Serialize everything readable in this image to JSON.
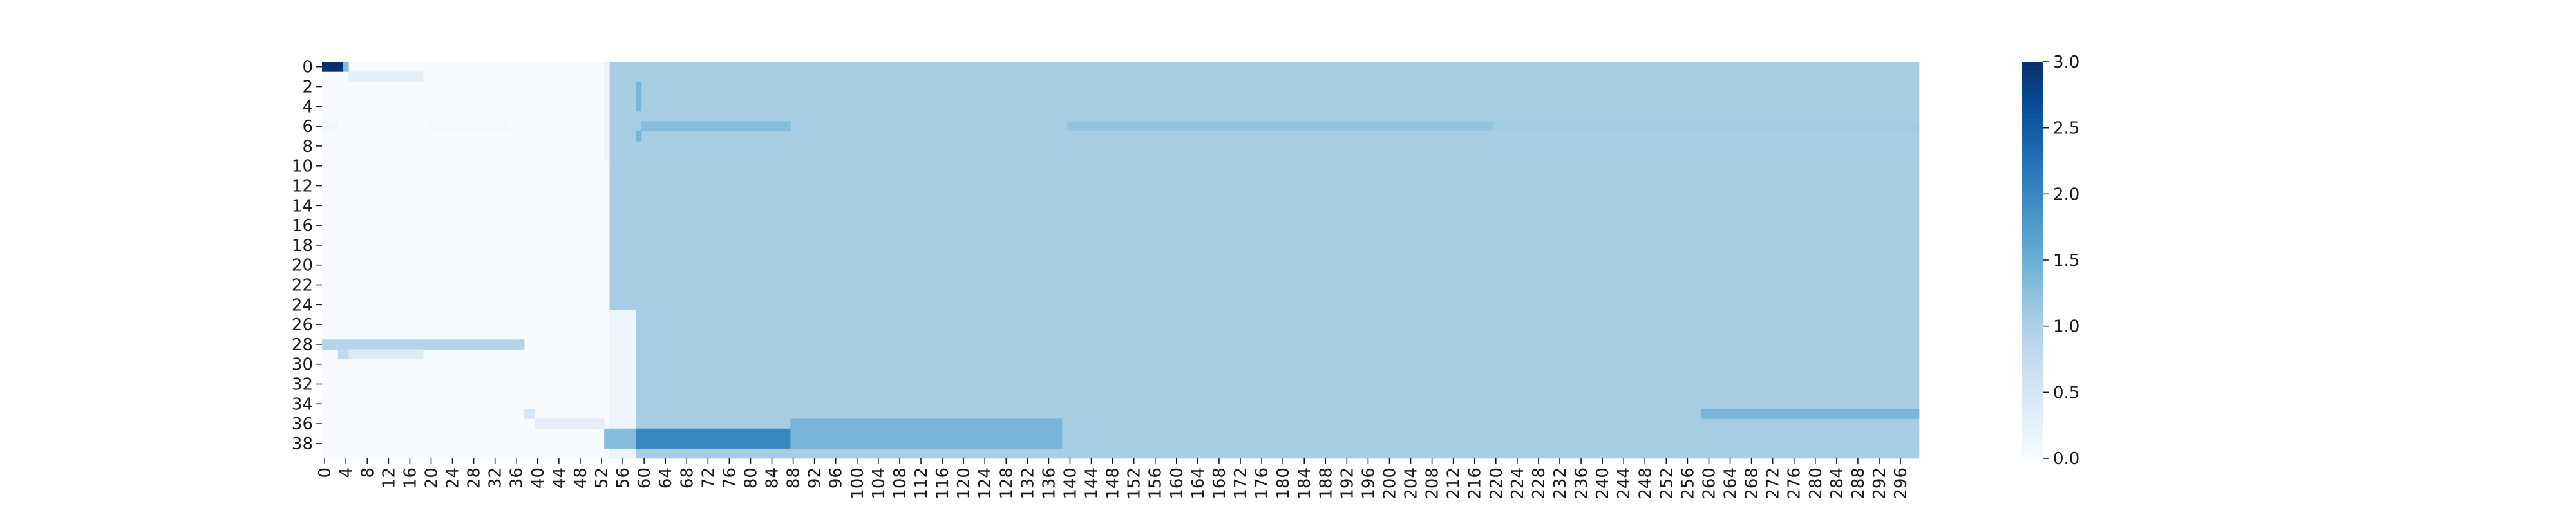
{
  "chart_data": {
    "type": "heatmap",
    "n_cols": 300,
    "n_rows": 40,
    "x_tick_labels": [
      "0",
      "4",
      "8",
      "12",
      "16",
      "20",
      "24",
      "28",
      "32",
      "36",
      "40",
      "44",
      "48",
      "52",
      "56",
      "60",
      "64",
      "68",
      "72",
      "76",
      "80",
      "84",
      "88",
      "92",
      "96",
      "100",
      "104",
      "108",
      "112",
      "116",
      "120",
      "124",
      "128",
      "132",
      "136",
      "140",
      "144",
      "148",
      "152",
      "156",
      "160",
      "164",
      "168",
      "172",
      "176",
      "180",
      "184",
      "188",
      "192",
      "196",
      "200",
      "204",
      "208",
      "212",
      "216",
      "220",
      "224",
      "228",
      "232",
      "236",
      "240",
      "244",
      "248",
      "252",
      "256",
      "260",
      "264",
      "268",
      "272",
      "276",
      "280",
      "284",
      "288",
      "292",
      "296"
    ],
    "y_tick_labels": [
      "0",
      "2",
      "4",
      "6",
      "8",
      "10",
      "12",
      "14",
      "16",
      "18",
      "20",
      "22",
      "24",
      "26",
      "28",
      "30",
      "32",
      "34",
      "36",
      "38"
    ],
    "colorbar": {
      "min": 0.0,
      "max": 3.0,
      "tick_labels": [
        "0.0",
        "0.5",
        "1.0",
        "1.5",
        "2.0",
        "2.5",
        "3.0"
      ]
    },
    "colormap": "Blues",
    "background_value": 0.0,
    "regions": [
      {
        "row_start": 0,
        "row_end": 39,
        "col_start": 54,
        "col_end": 299,
        "value": 1.05
      },
      {
        "row_start": 0,
        "row_end": 0,
        "col_start": 0,
        "col_end": 3,
        "value": 3.0
      },
      {
        "row_start": 0,
        "row_end": 0,
        "col_start": 4,
        "col_end": 4,
        "value": 1.3
      },
      {
        "row_start": 1,
        "row_end": 1,
        "col_start": 5,
        "col_end": 18,
        "value": 0.3
      },
      {
        "row_start": 0,
        "row_end": 9,
        "col_start": 53,
        "col_end": 53,
        "value": 0.15
      },
      {
        "row_start": 2,
        "row_end": 4,
        "col_start": 59,
        "col_end": 59,
        "value": 1.4
      },
      {
        "row_start": 6,
        "row_end": 6,
        "col_start": 0,
        "col_end": 2,
        "value": 0.1
      },
      {
        "row_start": 6,
        "row_end": 6,
        "col_start": 20,
        "col_end": 34,
        "value": 0.06
      },
      {
        "row_start": 6,
        "row_end": 6,
        "col_start": 60,
        "col_end": 87,
        "value": 1.3
      },
      {
        "row_start": 6,
        "row_end": 6,
        "col_start": 140,
        "col_end": 219,
        "value": 1.2
      },
      {
        "row_start": 6,
        "row_end": 6,
        "col_start": 220,
        "col_end": 299,
        "value": 1.1
      },
      {
        "row_start": 7,
        "row_end": 7,
        "col_start": 59,
        "col_end": 59,
        "value": 1.4
      },
      {
        "row_start": 25,
        "row_end": 39,
        "col_start": 54,
        "col_end": 58,
        "value": 0.15
      },
      {
        "row_start": 28,
        "row_end": 28,
        "col_start": 0,
        "col_end": 37,
        "value": 0.9
      },
      {
        "row_start": 29,
        "row_end": 29,
        "col_start": 3,
        "col_end": 4,
        "value": 0.8
      },
      {
        "row_start": 29,
        "row_end": 29,
        "col_start": 5,
        "col_end": 18,
        "value": 0.4
      },
      {
        "row_start": 35,
        "row_end": 35,
        "col_start": 38,
        "col_end": 39,
        "value": 0.5
      },
      {
        "row_start": 36,
        "row_end": 36,
        "col_start": 40,
        "col_end": 52,
        "value": 0.3
      },
      {
        "row_start": 37,
        "row_end": 38,
        "col_start": 53,
        "col_end": 58,
        "value": 1.3
      },
      {
        "row_start": 37,
        "row_end": 38,
        "col_start": 59,
        "col_end": 87,
        "value": 2.0
      },
      {
        "row_start": 36,
        "row_end": 38,
        "col_start": 88,
        "col_end": 138,
        "value": 1.4
      },
      {
        "row_start": 35,
        "row_end": 35,
        "col_start": 259,
        "col_end": 299,
        "value": 1.4
      }
    ]
  }
}
